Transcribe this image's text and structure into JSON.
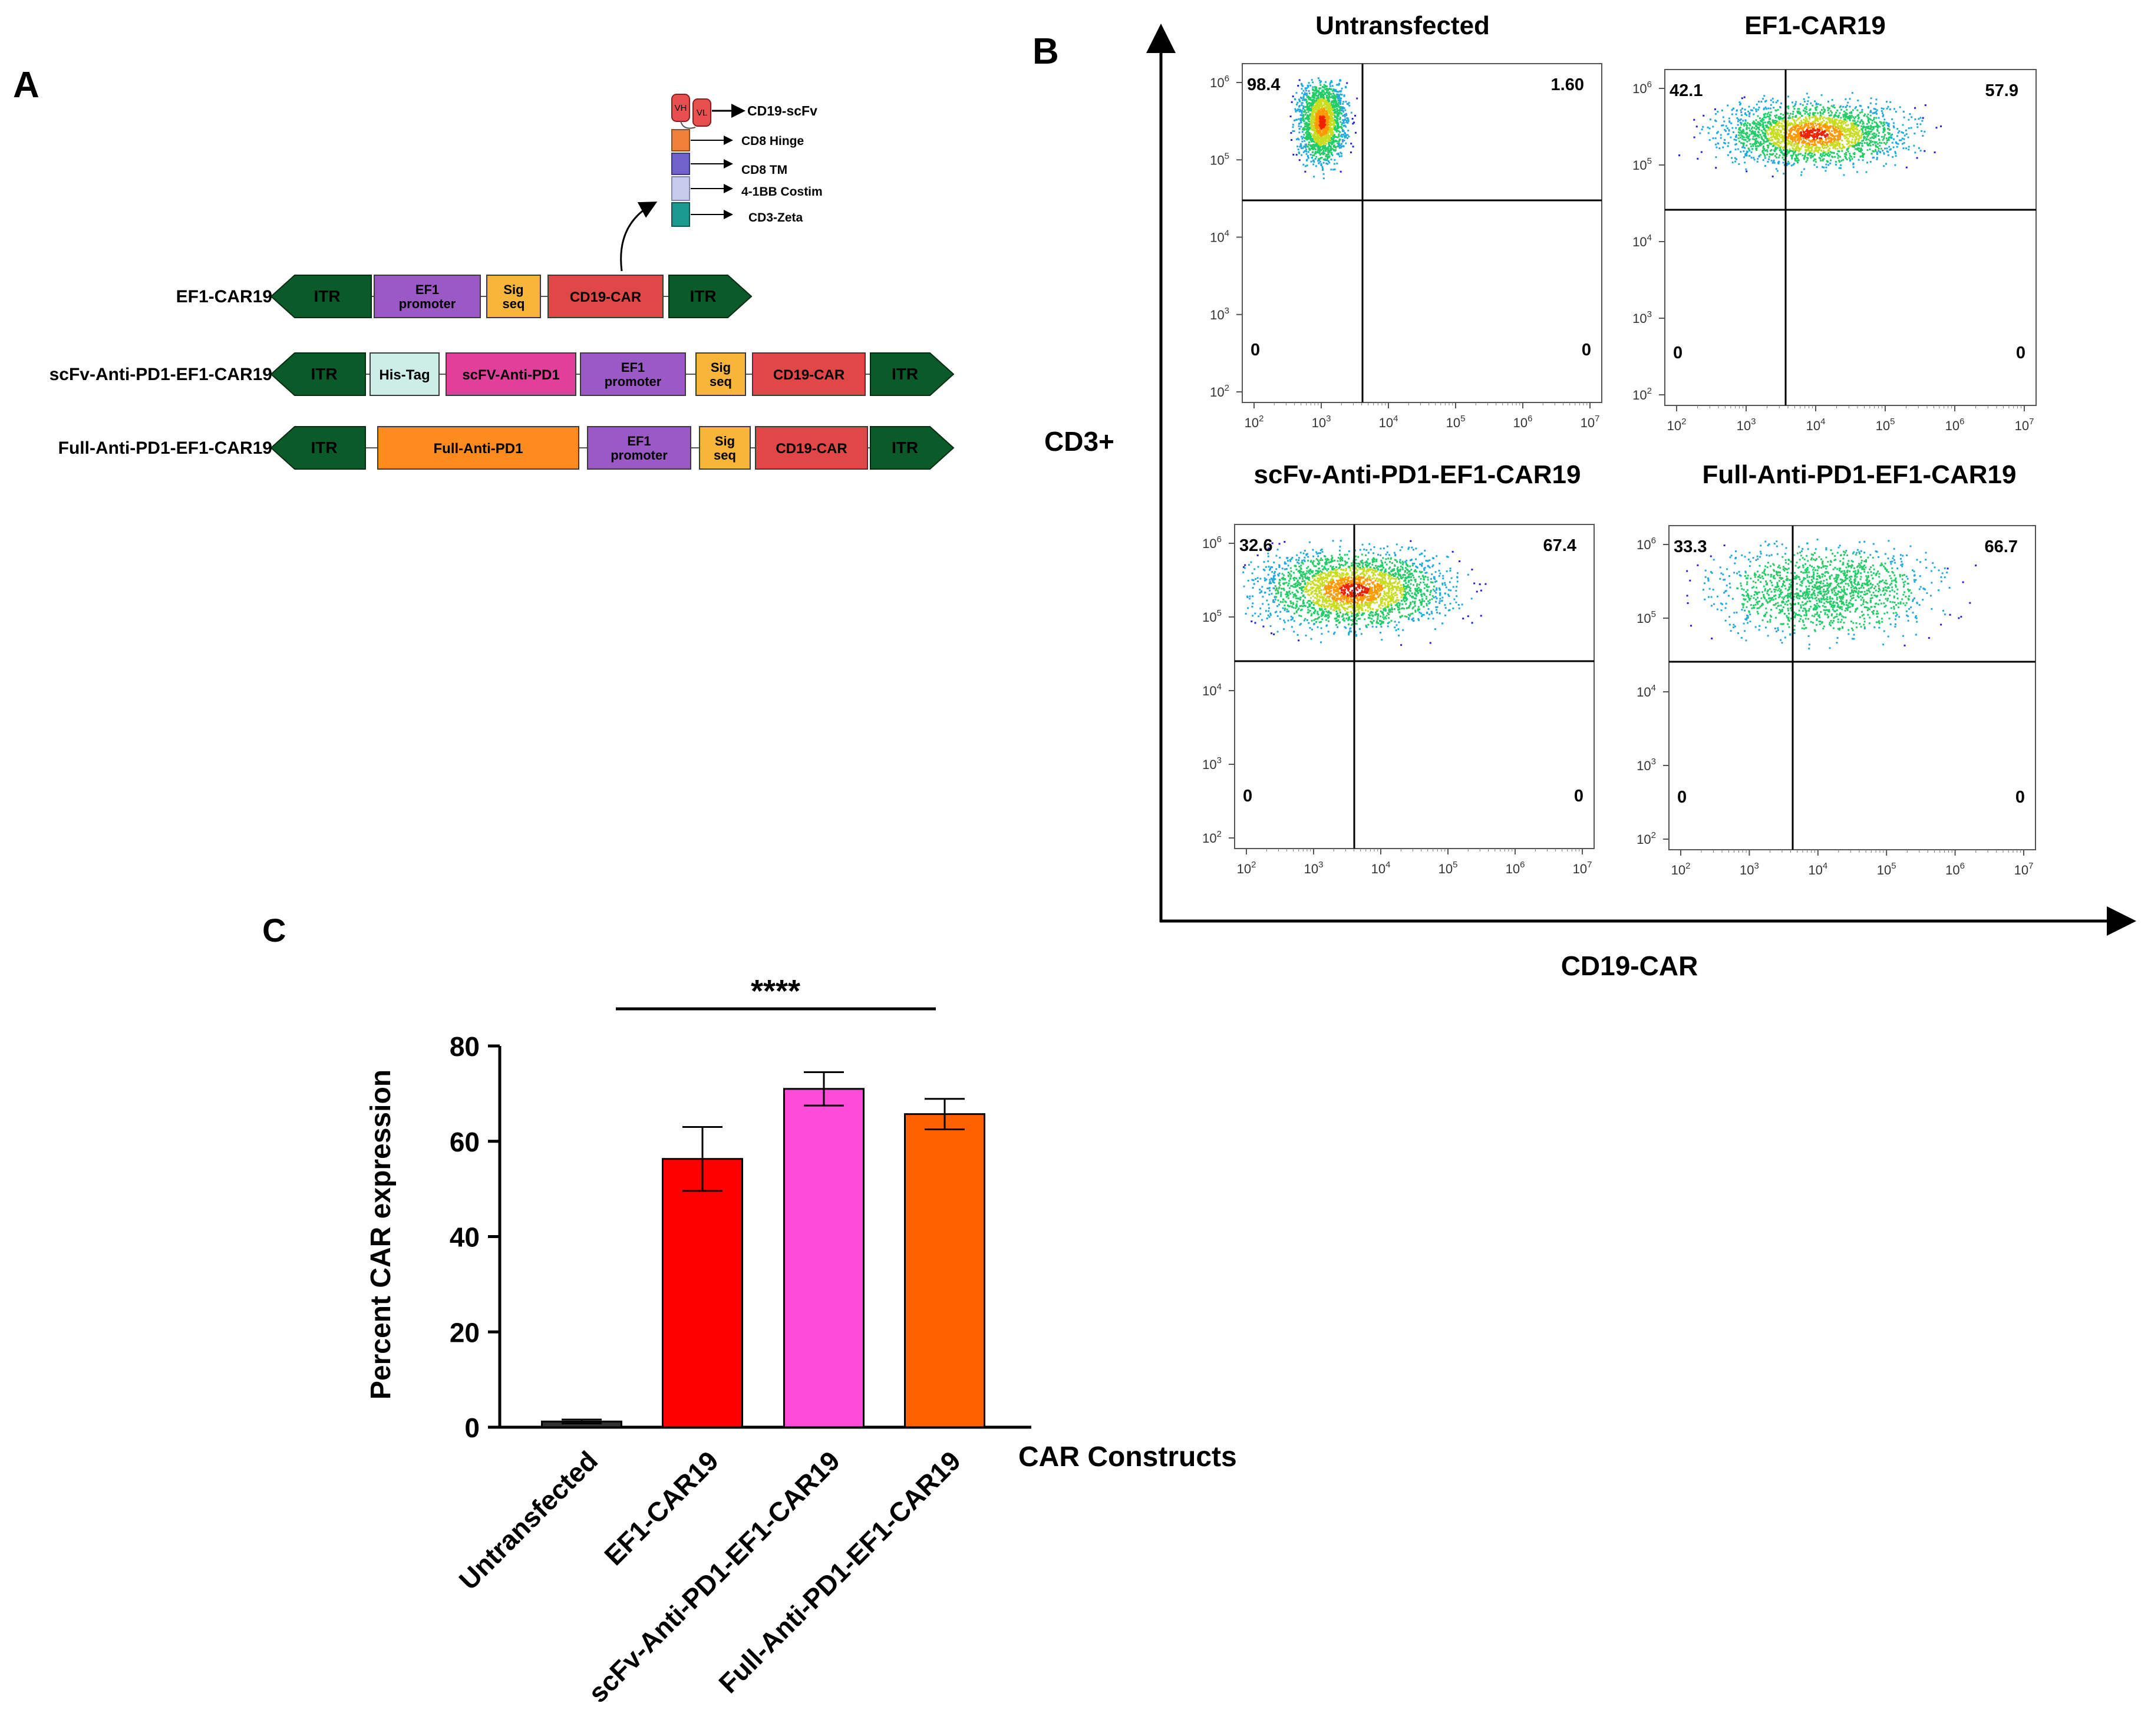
{
  "panel_labels": {
    "a": "A",
    "b": "B",
    "c": "C"
  },
  "colors": {
    "itr": "#0b5a2a",
    "ef1_promoter": "#9b59c6",
    "sig_seq": "#f7b53a",
    "cd19_car": "#e04848",
    "his_tag": "#cdeee6",
    "scfv_anti_pd1": "#e0409a",
    "full_anti_pd1": "#ff8a1e",
    "vh_vl": "#e85050",
    "cd8_hinge": "#f0803a",
    "cd8_tm": "#6f63c9",
    "costim_41bb": "#c8ccec",
    "cd3_zeta": "#1a9a8e",
    "bar_untransfected": "#333333",
    "bar_ef1": "#ff0000",
    "bar_scfv": "#ff4cd8",
    "bar_full": "#ff6100"
  },
  "panel_a": {
    "car_structure": {
      "vh": "VH",
      "vl": "VL",
      "labels": [
        "CD19-scFv",
        "CD8 Hinge",
        "CD8 TM",
        "4-1BB Costim",
        "CD3-Zeta"
      ]
    },
    "constructs": [
      {
        "name": "EF1-CAR19",
        "blocks": [
          {
            "kind": "itr_left",
            "lines": [
              "ITR"
            ],
            "color_key": "itr"
          },
          {
            "kind": "box",
            "lines": [
              "EF1",
              "promoter"
            ],
            "color_key": "ef1_promoter"
          },
          {
            "kind": "box",
            "lines": [
              "Sig",
              "seq"
            ],
            "color_key": "sig_seq"
          },
          {
            "kind": "box",
            "lines": [
              "CD19-CAR"
            ],
            "color_key": "cd19_car"
          },
          {
            "kind": "itr_right",
            "lines": [
              "ITR"
            ],
            "color_key": "itr"
          }
        ]
      },
      {
        "name": "scFv-Anti-PD1-EF1-CAR19",
        "blocks": [
          {
            "kind": "itr_left",
            "lines": [
              "ITR"
            ],
            "color_key": "itr"
          },
          {
            "kind": "box",
            "lines": [
              "His-Tag"
            ],
            "color_key": "his_tag"
          },
          {
            "kind": "box",
            "lines": [
              "scFV-Anti-PD1"
            ],
            "color_key": "scfv_anti_pd1"
          },
          {
            "kind": "box",
            "lines": [
              "EF1",
              "promoter"
            ],
            "color_key": "ef1_promoter"
          },
          {
            "kind": "box",
            "lines": [
              "Sig",
              "seq"
            ],
            "color_key": "sig_seq"
          },
          {
            "kind": "box",
            "lines": [
              "CD19-CAR"
            ],
            "color_key": "cd19_car"
          },
          {
            "kind": "itr_right",
            "lines": [
              "ITR"
            ],
            "color_key": "itr"
          }
        ]
      },
      {
        "name": "Full-Anti-PD1-EF1-CAR19",
        "blocks": [
          {
            "kind": "itr_left",
            "lines": [
              "ITR"
            ],
            "color_key": "itr"
          },
          {
            "kind": "box",
            "lines": [
              "Full-Anti-PD1"
            ],
            "color_key": "full_anti_pd1"
          },
          {
            "kind": "box",
            "lines": [
              "EF1",
              "promoter"
            ],
            "color_key": "ef1_promoter"
          },
          {
            "kind": "box",
            "lines": [
              "Sig",
              "seq"
            ],
            "color_key": "sig_seq"
          },
          {
            "kind": "box",
            "lines": [
              "CD19-CAR"
            ],
            "color_key": "cd19_car"
          },
          {
            "kind": "itr_right",
            "lines": [
              "ITR"
            ],
            "color_key": "itr"
          }
        ]
      }
    ]
  },
  "panel_b": {
    "y_axis_label": "CD3+",
    "x_axis_label": "CD19-CAR",
    "tick_exponents": [
      "2",
      "3",
      "4",
      "5",
      "6",
      "7"
    ],
    "y_tick_exponents": [
      "2",
      "3",
      "4",
      "5",
      "6"
    ],
    "plots": [
      {
        "title": "Untransfected",
        "q_upper_left": "98.4",
        "q_upper_right": "1.60",
        "q_lower_left": "0",
        "q_lower_right": "0"
      },
      {
        "title": "EF1-CAR19",
        "q_upper_left": "42.1",
        "q_upper_right": "57.9",
        "q_lower_left": "0",
        "q_lower_right": "0"
      },
      {
        "title": "scFv-Anti-PD1-EF1-CAR19",
        "q_upper_left": "32.6",
        "q_upper_right": "67.4",
        "q_lower_left": "0",
        "q_lower_right": "0"
      },
      {
        "title": "Full-Anti-PD1-EF1-CAR19",
        "q_upper_left": "33.3",
        "q_upper_right": "66.7",
        "q_lower_left": "0",
        "q_lower_right": "0"
      }
    ]
  },
  "chart_data": {
    "type": "bar",
    "categories": [
      "Untransfected",
      "EF1-CAR19",
      "scFv-Anti-PD1-EF1-CAR19",
      "Full-Anti-PD1-EF1-CAR19"
    ],
    "values": [
      1.2,
      56.3,
      71.0,
      65.7
    ],
    "errors": [
      0.4,
      6.7,
      3.5,
      3.2
    ],
    "xlabel": "CAR Constructs",
    "ylabel": "Percent CAR expression",
    "ylim": [
      0,
      80
    ],
    "yticks": [
      "0",
      "20",
      "40",
      "60",
      "80"
    ],
    "significance": "****",
    "grid": false
  }
}
